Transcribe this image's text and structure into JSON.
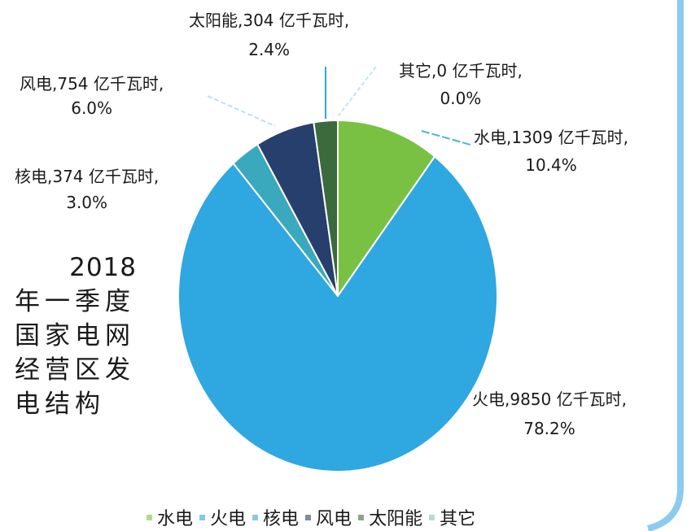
{
  "chart_data": {
    "type": "pie",
    "title": "2018年一季度国家电网经营区发电结构",
    "title_lines": [
      "2018",
      "年一季度",
      "国家电网",
      "经营区发",
      "电结构"
    ],
    "unit": "亿千瓦时",
    "start": "top",
    "direction": "clockwise",
    "legend_position": "bottom",
    "slices": [
      {
        "name": "水电",
        "value": 1309,
        "percent": 10.4,
        "label": "水电,1309 亿千瓦时,",
        "pct_label": "10.4%",
        "color": "#79c143"
      },
      {
        "name": "火电",
        "value": 9850,
        "percent": 78.2,
        "label": "火电,9850 亿千瓦时,",
        "pct_label": "78.2%",
        "color": "#2fa7e0"
      },
      {
        "name": "核电",
        "value": 374,
        "percent": 3.0,
        "label": "核电,374 亿千瓦时,",
        "pct_label": "3.0%",
        "color": "#3aa9bd"
      },
      {
        "name": "风电",
        "value": 754,
        "percent": 6.0,
        "label": "风电,754 亿千瓦时,",
        "pct_label": "6.0%",
        "color": "#273f6d"
      },
      {
        "name": "太阳能",
        "value": 304,
        "percent": 2.4,
        "label": "太阳能,304 亿千瓦时,",
        "pct_label": "2.4%",
        "color": "#3b6a3c"
      },
      {
        "name": "其它",
        "value": 0,
        "percent": 0.0,
        "label": "其它,0 亿千瓦时,",
        "pct_label": "0.0%",
        "color": "#8fc1a8"
      }
    ]
  },
  "frame_color": "#8ccbf0"
}
